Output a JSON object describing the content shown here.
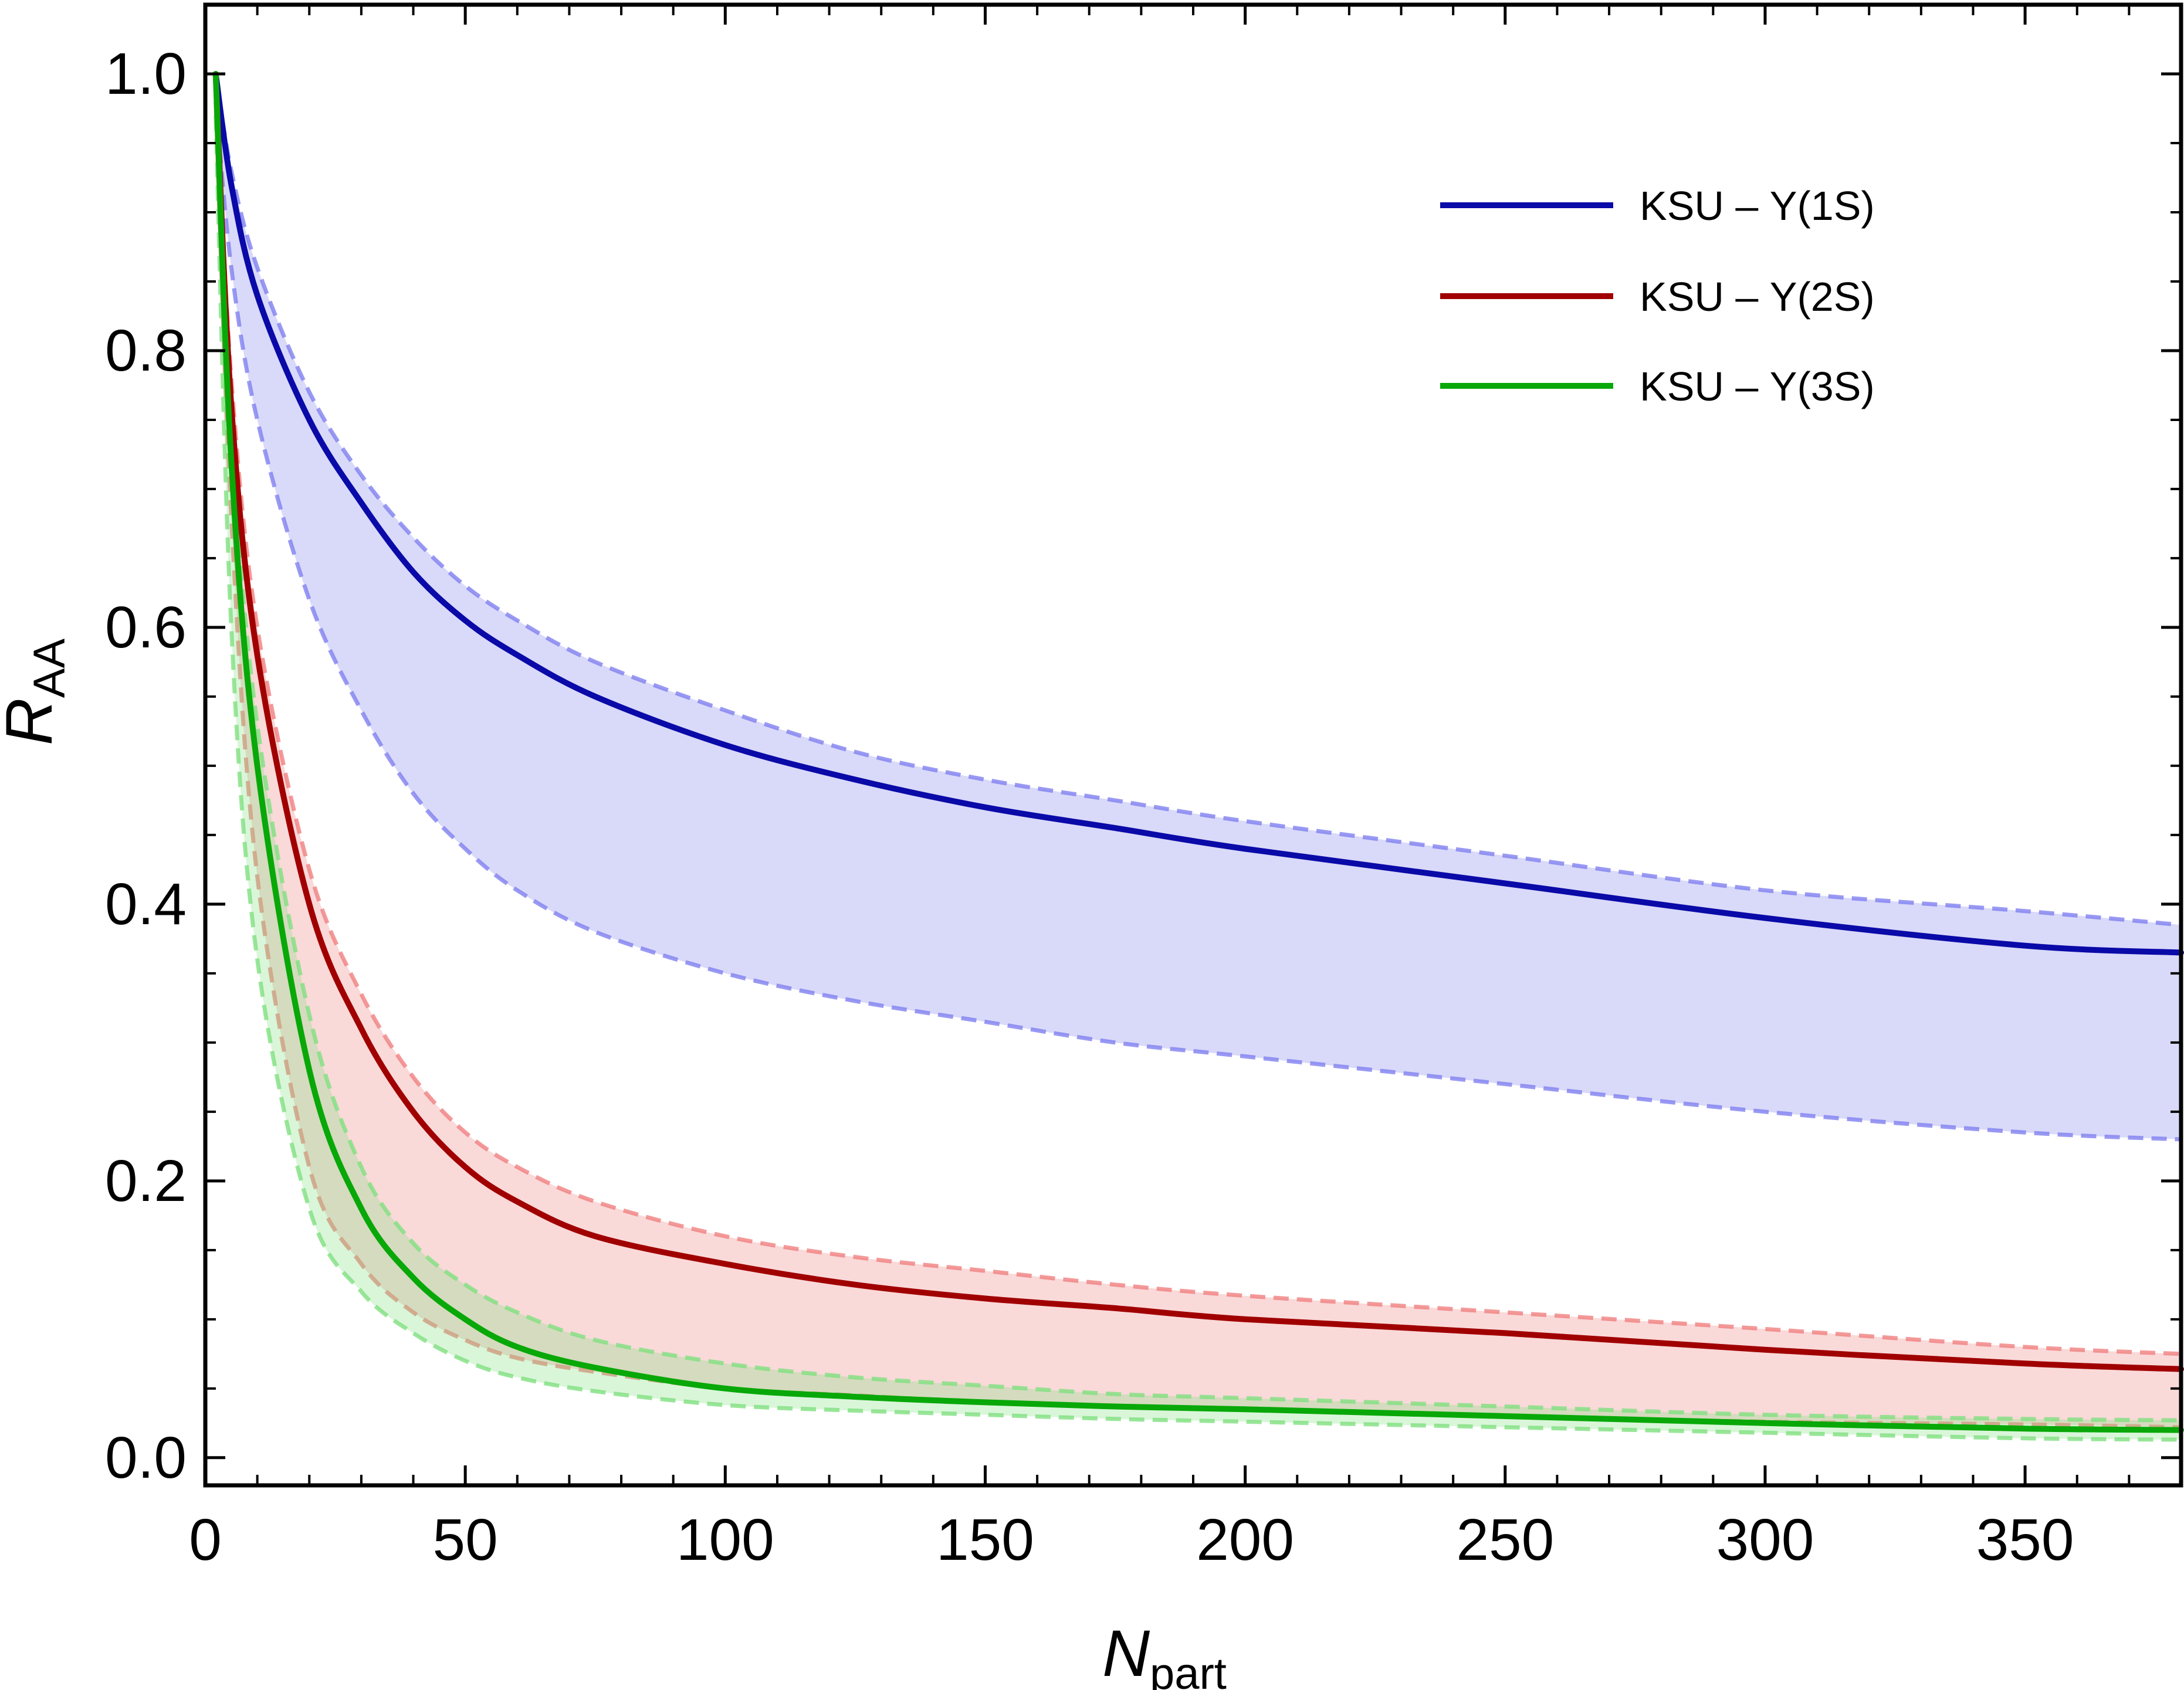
{
  "chart_data": {
    "type": "line",
    "xlabel": "N",
    "xlabel_sub": "part",
    "ylabel": "R",
    "ylabel_sub": "AA",
    "xlim": [
      0,
      380
    ],
    "ylim": [
      -0.02,
      1.05
    ],
    "xticks": [
      0,
      50,
      100,
      150,
      200,
      250,
      300,
      350
    ],
    "xtick_labels": [
      "0",
      "50",
      "100",
      "150",
      "200",
      "250",
      "300",
      "350"
    ],
    "yticks": [
      0.0,
      0.2,
      0.4,
      0.6,
      0.8,
      1.0
    ],
    "ytick_labels": [
      "0.0",
      "0.2",
      "0.4",
      "0.6",
      "0.8",
      "1.0"
    ],
    "grid": false,
    "legend_position": "top-right",
    "x": [
      2,
      5,
      10,
      20,
      30,
      40,
      50,
      60,
      75,
      100,
      125,
      150,
      175,
      200,
      250,
      300,
      350,
      380
    ],
    "series": [
      {
        "name": "KSU – Υ(1S)",
        "color": "#0a0aa8",
        "band_color": "#8080f0",
        "values": [
          1.0,
          0.92,
          0.84,
          0.75,
          0.69,
          0.64,
          0.605,
          0.58,
          0.55,
          0.515,
          0.49,
          0.47,
          0.455,
          0.44,
          0.415,
          0.39,
          0.37,
          0.365
        ],
        "upper": [
          1.0,
          0.93,
          0.86,
          0.77,
          0.71,
          0.665,
          0.63,
          0.605,
          0.575,
          0.54,
          0.51,
          0.49,
          0.475,
          0.46,
          0.435,
          0.41,
          0.395,
          0.385
        ],
        "lower": [
          0.98,
          0.86,
          0.75,
          0.62,
          0.54,
          0.48,
          0.44,
          0.41,
          0.38,
          0.35,
          0.33,
          0.315,
          0.3,
          0.29,
          0.27,
          0.25,
          0.235,
          0.23
        ]
      },
      {
        "name": "KSU – Υ(2S)",
        "color": "#a00000",
        "band_color": "#f08080",
        "values": [
          1.0,
          0.76,
          0.58,
          0.4,
          0.31,
          0.25,
          0.21,
          0.185,
          0.16,
          0.14,
          0.125,
          0.115,
          0.108,
          0.1,
          0.09,
          0.078,
          0.068,
          0.064
        ],
        "upper": [
          1.0,
          0.78,
          0.6,
          0.425,
          0.335,
          0.275,
          0.235,
          0.21,
          0.185,
          0.16,
          0.145,
          0.135,
          0.125,
          0.117,
          0.105,
          0.093,
          0.08,
          0.075
        ],
        "lower": [
          0.98,
          0.68,
          0.42,
          0.21,
          0.14,
          0.105,
          0.085,
          0.072,
          0.062,
          0.05,
          0.045,
          0.04,
          0.037,
          0.035,
          0.03,
          0.026,
          0.024,
          0.022
        ]
      },
      {
        "name": "KSU – Υ(3S)",
        "color": "#08a808",
        "band_color": "#80e080",
        "values": [
          1.0,
          0.72,
          0.5,
          0.28,
          0.18,
          0.13,
          0.1,
          0.08,
          0.065,
          0.05,
          0.044,
          0.04,
          0.037,
          0.035,
          0.03,
          0.025,
          0.021,
          0.02
        ],
        "upper": [
          1.0,
          0.74,
          0.53,
          0.32,
          0.21,
          0.155,
          0.125,
          0.105,
          0.085,
          0.068,
          0.058,
          0.052,
          0.046,
          0.043,
          0.037,
          0.031,
          0.028,
          0.027
        ],
        "lower": [
          0.97,
          0.6,
          0.36,
          0.18,
          0.12,
          0.09,
          0.07,
          0.058,
          0.048,
          0.038,
          0.034,
          0.031,
          0.028,
          0.026,
          0.022,
          0.018,
          0.014,
          0.013
        ]
      }
    ]
  }
}
